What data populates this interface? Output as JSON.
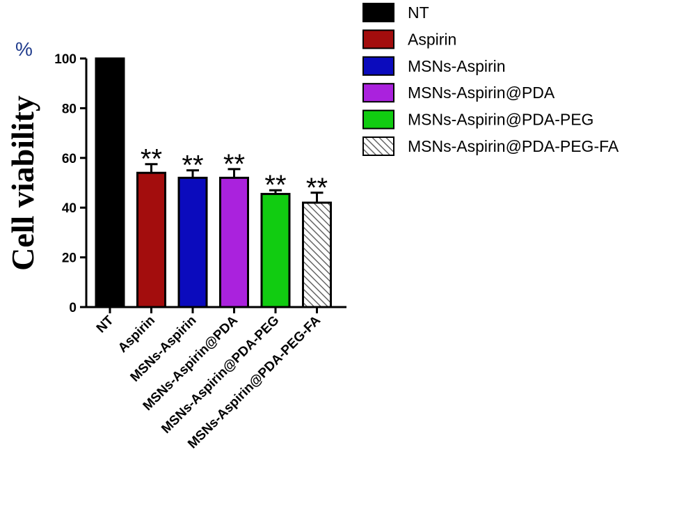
{
  "chart_data": {
    "type": "bar",
    "ylabel": "Cell viability",
    "yunit": "%",
    "ylim": [
      0,
      100
    ],
    "yticks": [
      0,
      20,
      40,
      60,
      80,
      100
    ],
    "grid": false,
    "legend_position": "top-right",
    "categories": [
      "NT",
      "Aspirin",
      "MSNs-Aspirin",
      "MSNs-Aspirin@PDA",
      "MSNs-Aspirin@PDA-PEG",
      "MSNs-Aspirin@PDA-PEG-FA"
    ],
    "values": [
      100,
      54,
      52,
      52,
      45.5,
      42
    ],
    "errors": [
      0,
      3.5,
      3,
      3.5,
      1.5,
      4
    ],
    "significance": [
      "",
      "**",
      "**",
      "**",
      "**",
      "**"
    ],
    "colors": [
      "#000000",
      "#a30d0d",
      "#0b0bbd",
      "#aa22dd",
      "#11cc11",
      "hatched"
    ]
  }
}
